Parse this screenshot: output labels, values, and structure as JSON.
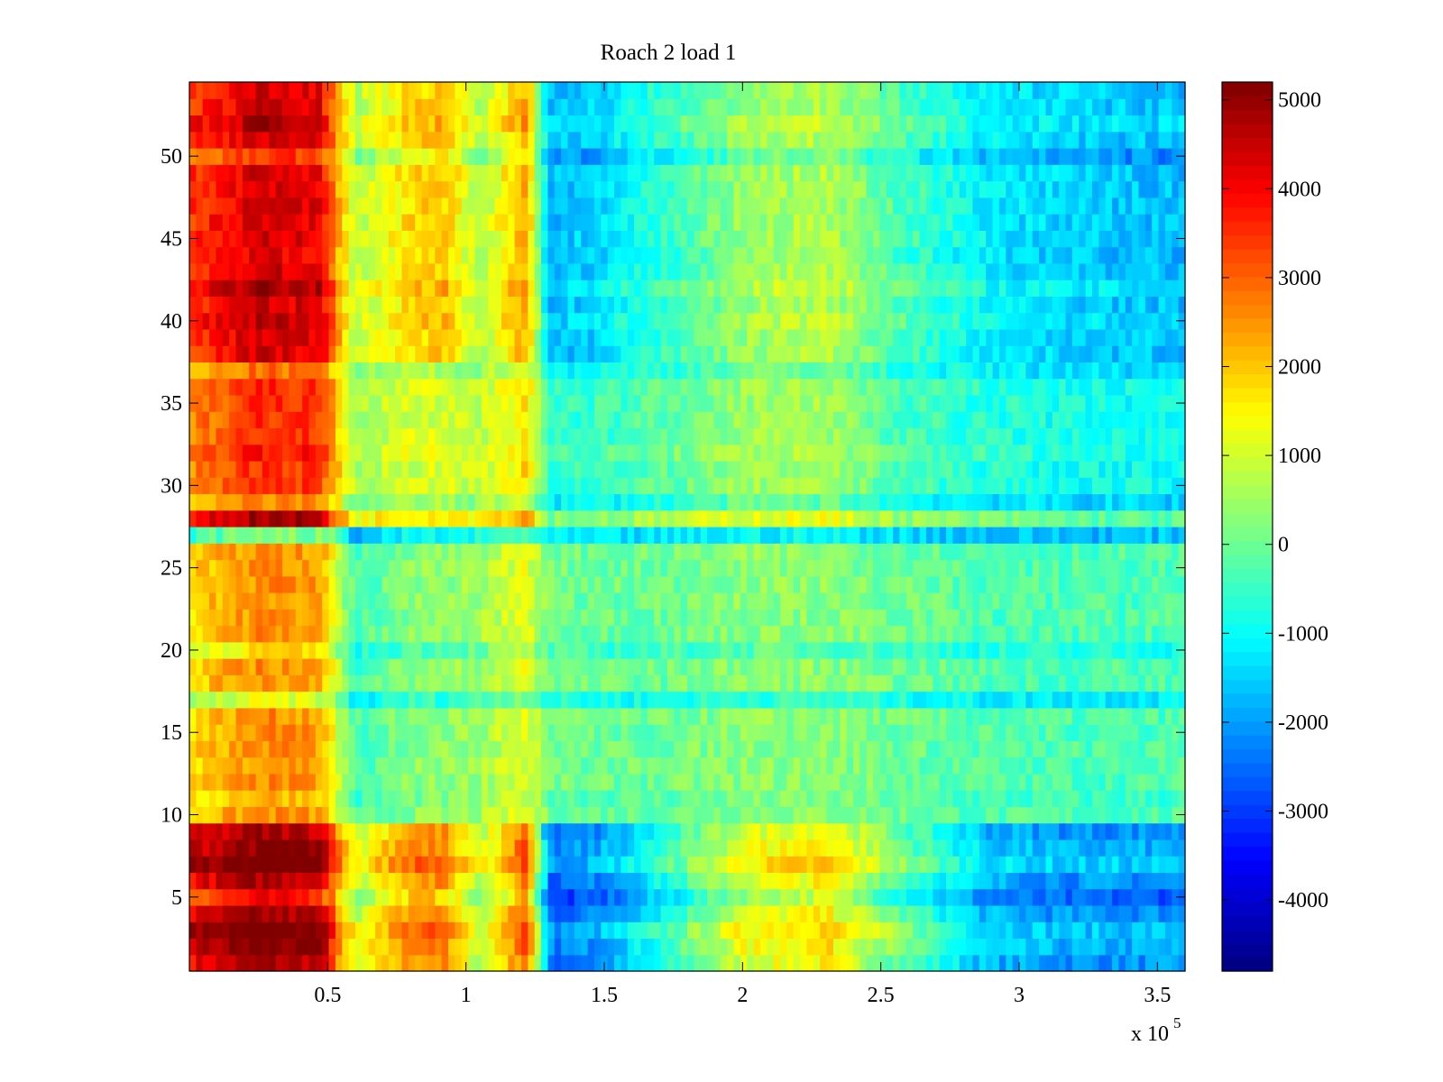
{
  "chart_data": {
    "type": "heatmap",
    "title": "Roach 2 load 1",
    "xlabel": "",
    "ylabel": "",
    "x_multiplier": {
      "base": "x 10",
      "exponent": "5"
    },
    "xlim": [
      0,
      3.6
    ],
    "ylim": [
      0.5,
      54.5
    ],
    "x_ticks": [
      0.5,
      1,
      1.5,
      2,
      2.5,
      3,
      3.5
    ],
    "x_tick_labels": [
      "0.5",
      "1",
      "1.5",
      "2",
      "2.5",
      "3",
      "3.5"
    ],
    "y_ticks": [
      5,
      10,
      15,
      20,
      25,
      30,
      35,
      40,
      45,
      50
    ],
    "y_tick_labels": [
      "5",
      "10",
      "15",
      "20",
      "25",
      "30",
      "35",
      "40",
      "45",
      "50"
    ],
    "rows": 54,
    "colormap": "jet",
    "colorbar": {
      "clim": [
        -4800,
        5200
      ],
      "ticks": [
        5000,
        4000,
        3000,
        2000,
        1000,
        0,
        -1000,
        -2000,
        -3000,
        -4000
      ],
      "tick_labels": [
        "5000",
        "4000",
        "3000",
        "2000",
        "1000",
        "0",
        "-1000",
        "-2000",
        "-3000",
        "-4000"
      ]
    },
    "column_profile": {
      "x": [
        0.0,
        0.25,
        0.47,
        0.6,
        0.8,
        0.92,
        1.05,
        1.22,
        1.3,
        1.45,
        1.7,
        2.0,
        2.3,
        2.6,
        2.9,
        3.2,
        3.6
      ],
      "row_groups": [
        {
          "name": "rows 1-9",
          "rows": [
            1,
            9
          ],
          "values": [
            4000,
            4800,
            4600,
            800,
            2500,
            2500,
            600,
            3000,
            -2500,
            -2300,
            -1000,
            1000,
            1500,
            -300,
            -1800,
            -2100,
            -2100
          ]
        },
        {
          "name": "rows 10-27",
          "rows": [
            10,
            27
          ],
          "values": [
            1800,
            2600,
            2400,
            -400,
            300,
            300,
            500,
            1200,
            100,
            0,
            0,
            300,
            300,
            0,
            -300,
            -300,
            -300
          ]
        },
        {
          "name": "rows 28-37",
          "rows": [
            28,
            37
          ],
          "values": [
            2600,
            3600,
            3400,
            600,
            1000,
            1000,
            800,
            1800,
            -600,
            -500,
            -200,
            400,
            500,
            -400,
            -700,
            -900,
            -1000
          ]
        },
        {
          "name": "rows 38-54",
          "rows": [
            38,
            54
          ],
          "values": [
            3400,
            4400,
            4200,
            700,
            1800,
            2000,
            700,
            2300,
            -1700,
            -1500,
            -600,
            400,
            700,
            -400,
            -1200,
            -1500,
            -1700
          ]
        }
      ],
      "row_offsets": {
        "2": 400,
        "3": 800,
        "5": -900,
        "7": 900,
        "8": 400,
        "11": -300,
        "17": -1400,
        "20": -800,
        "27": -2300,
        "28": 1300,
        "29": -900,
        "32": 300,
        "37": -700,
        "40": 300,
        "42": 500,
        "44": -200,
        "50": -900,
        "52": 400
      }
    }
  }
}
